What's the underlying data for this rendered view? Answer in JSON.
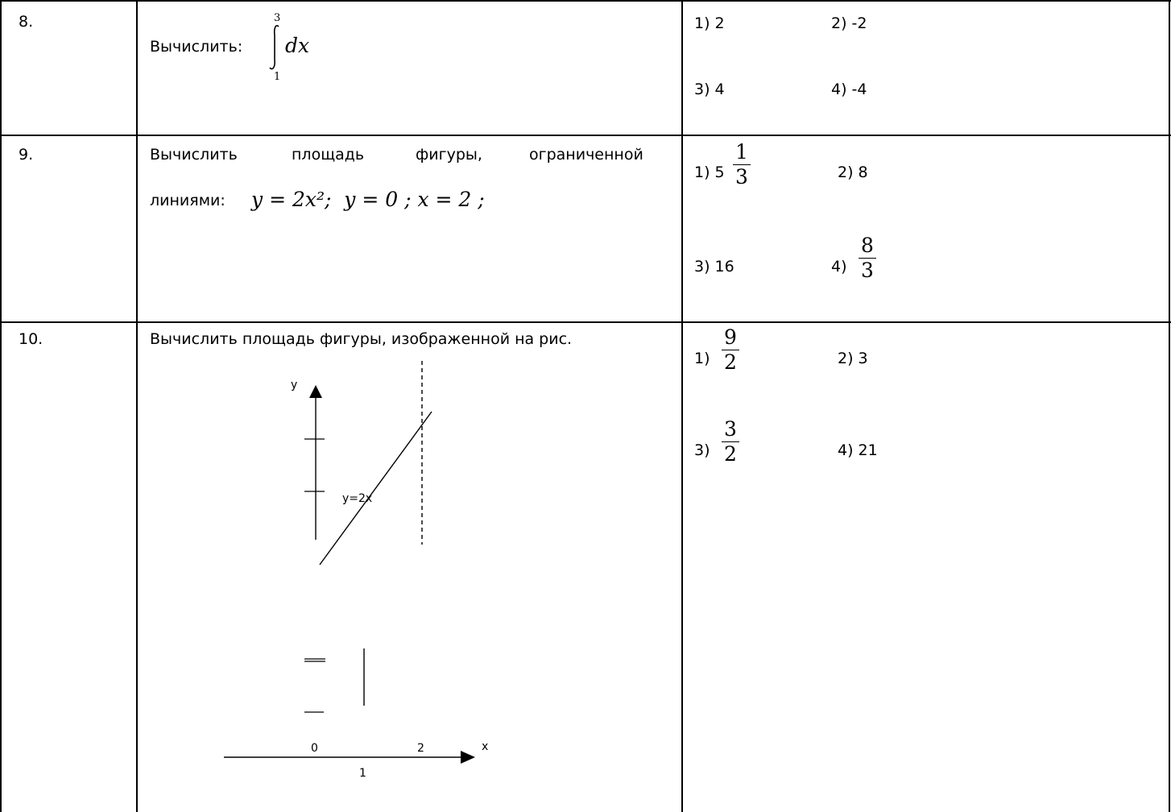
{
  "rows": [
    {
      "num": "8.",
      "question_prefix": "Вычислить:",
      "integral": {
        "upper": "3",
        "lower": "1",
        "integrand": "dx"
      },
      "answers": [
        "1) 2",
        "2) -2",
        "3) 4",
        "4) -4"
      ]
    },
    {
      "num": "9.",
      "question_line1": [
        "Вычислить",
        "площадь",
        "фигуры,",
        "ограниченной"
      ],
      "question_line2_prefix": "линиями:",
      "equations": "y = 2x²;  y = 0 ; x = 2 ;",
      "answers": {
        "a1_label": "1) 5",
        "a1_num": "1",
        "a1_den": "3",
        "a2": "2) 8",
        "a3": "3) 16",
        "a4_label": "4)",
        "a4_num": "8",
        "a4_den": "3"
      }
    },
    {
      "num": "10.",
      "question": "Вычислить площадь фигуры, изображенной на рис.",
      "figure": {
        "y_axis_label": "y",
        "x_axis_label": "x",
        "line_label": "y=2x",
        "tick_0": "0",
        "tick_1": "1",
        "tick_2": "2"
      },
      "answers": {
        "a1_label": "1)",
        "a1_num": "9",
        "a1_den": "2",
        "a2": "2) 3",
        "a3_label": "3)",
        "a3_num": "3",
        "a3_den": "2",
        "a4": "4) 21"
      }
    }
  ]
}
